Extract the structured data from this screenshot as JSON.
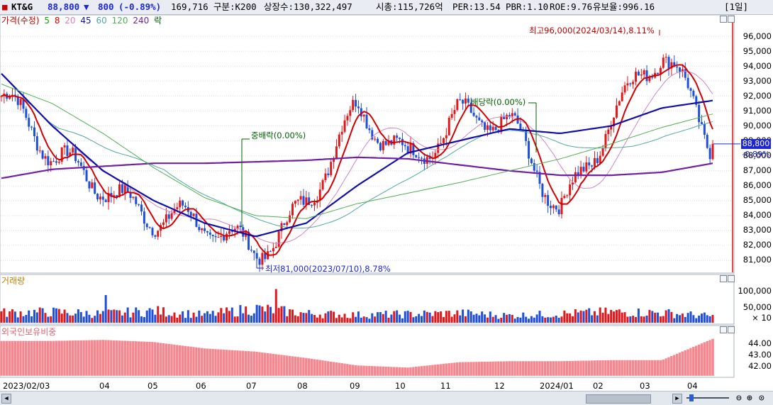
{
  "header": {
    "code": "KT&G",
    "price": "88,800",
    "change_arrow": "▼",
    "change": "800",
    "change_pct": "(-0.89%)",
    "volume": "169,716",
    "market": "구분:K200",
    "shares": "상장수:130,322,497",
    "market_cap": "시총:115,726억",
    "per": "PER:13.54",
    "pbr": "PBR:1.10",
    "roe": "ROE:9.76",
    "reserve": "유보율:996.16",
    "period_button": "[1일]",
    "colors": {
      "down": "#1d27d3",
      "up": "#d4000a"
    }
  },
  "price_legend": [
    {
      "text": "가격(수정)",
      "color": "#c00000"
    },
    {
      "text": "5",
      "color": "#16a000"
    },
    {
      "text": "8",
      "color": "#d40000"
    },
    {
      "text": "20",
      "color": "#d084c8"
    },
    {
      "text": "45",
      "color": "#1010a8"
    },
    {
      "text": "60",
      "color": "#50a8a0"
    },
    {
      "text": "120",
      "color": "#50b050"
    },
    {
      "text": "240",
      "color": "#7020a0"
    },
    {
      "text": "락",
      "color": "#006000"
    }
  ],
  "price_axis": [
    "96,000",
    "95,000",
    "94,000",
    "93,000",
    "92,000",
    "91,000",
    "90,000",
    "89,000",
    "88,000",
    "87,000",
    "86,000",
    "85,000",
    "84,000",
    "83,000",
    "82,000",
    "81,000"
  ],
  "current_price_tag": "88,800",
  "current_change_tag": "-0.89%",
  "volume_legend": "거래량",
  "volume_axis": [
    "100,000",
    "50,000",
    "× 10"
  ],
  "foreign_legend": "외국인보유비중",
  "foreign_axis": [
    "44.00",
    "43.00",
    "42.00"
  ],
  "x_axis": [
    "2023/02/03",
    "04",
    "05",
    "06",
    "07",
    "08",
    "09",
    "10",
    "11",
    "12",
    "2024/01",
    "02",
    "03",
    "04"
  ],
  "chart_data": {
    "type": "candlestick",
    "ylim": [
      80300,
      97000
    ],
    "x": [
      "2023/02",
      "2023/03",
      "2023/04",
      "2023/05",
      "2023/06",
      "2023/07",
      "2023/08",
      "2023/09",
      "2023/10",
      "2023/11",
      "2023/12",
      "2024/01",
      "2024/02",
      "2024/03",
      "2024/04"
    ],
    "close": [
      92000,
      87500,
      86500,
      84000,
      82800,
      82000,
      85000,
      90500,
      88000,
      91000,
      89500,
      84500,
      91000,
      94500,
      88800
    ],
    "series": [
      {
        "name": "45",
        "values": [
          93500,
          90000,
          87000,
          85000,
          83500,
          82600,
          83500,
          86000,
          88200,
          89000,
          89800,
          89500,
          90000,
          91200,
          91700
        ]
      },
      {
        "name": "240",
        "values": [
          86500,
          87100,
          87300,
          87500,
          87500,
          87600,
          87700,
          87900,
          87800,
          87400,
          87000,
          86700,
          86700,
          86900,
          87500
        ]
      },
      {
        "name": "60",
        "values": [
          92800,
          91500,
          89500,
          87200,
          85200,
          84000,
          83800,
          84800,
          85500,
          86200,
          87000,
          87800,
          88800,
          89900,
          90800
        ]
      }
    ],
    "volume": [
      28,
      30,
      25,
      33,
      22,
      40,
      26,
      22,
      24,
      27,
      20,
      25,
      30,
      28,
      18
    ],
    "foreign_ratio": [
      44.5,
      44.5,
      44.6,
      44.4,
      43.8,
      43.5,
      42.9,
      42.2,
      42.0,
      42.5,
      42.6,
      42.6,
      42.7,
      42.7,
      44.7
    ],
    "annotations": [
      {
        "text": "최고96,000(2024/03/14),8.11%",
        "x": "2024/03",
        "value": 96000
      },
      {
        "text": "최저81,000(2023/07/10),8.78%",
        "x": "2023/07",
        "value": 81000
      },
      {
        "text": "중배락(0.00%)",
        "x": "2023/06"
      },
      {
        "text": "배당락(0.00%)",
        "x": "2023/12"
      }
    ]
  }
}
